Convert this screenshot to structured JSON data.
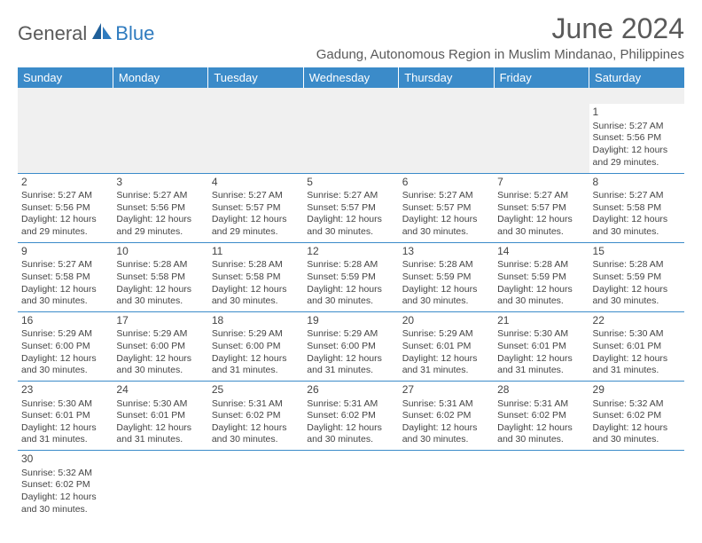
{
  "brand": {
    "part1": "General",
    "part2": "Blue"
  },
  "title": "June 2024",
  "location": "Gadung, Autonomous Region in Muslim Mindanao, Philippines",
  "header_bg": "#3b8bc9",
  "header_fg": "#ffffff",
  "border_color": "#3b8bc9",
  "dayNames": [
    "Sunday",
    "Monday",
    "Tuesday",
    "Wednesday",
    "Thursday",
    "Friday",
    "Saturday"
  ],
  "weeks": [
    [
      null,
      null,
      null,
      null,
      null,
      null,
      {
        "n": "1",
        "sr": "Sunrise: 5:27 AM",
        "ss": "Sunset: 5:56 PM",
        "d1": "Daylight: 12 hours",
        "d2": "and 29 minutes."
      }
    ],
    [
      {
        "n": "2",
        "sr": "Sunrise: 5:27 AM",
        "ss": "Sunset: 5:56 PM",
        "d1": "Daylight: 12 hours",
        "d2": "and 29 minutes."
      },
      {
        "n": "3",
        "sr": "Sunrise: 5:27 AM",
        "ss": "Sunset: 5:56 PM",
        "d1": "Daylight: 12 hours",
        "d2": "and 29 minutes."
      },
      {
        "n": "4",
        "sr": "Sunrise: 5:27 AM",
        "ss": "Sunset: 5:57 PM",
        "d1": "Daylight: 12 hours",
        "d2": "and 29 minutes."
      },
      {
        "n": "5",
        "sr": "Sunrise: 5:27 AM",
        "ss": "Sunset: 5:57 PM",
        "d1": "Daylight: 12 hours",
        "d2": "and 30 minutes."
      },
      {
        "n": "6",
        "sr": "Sunrise: 5:27 AM",
        "ss": "Sunset: 5:57 PM",
        "d1": "Daylight: 12 hours",
        "d2": "and 30 minutes."
      },
      {
        "n": "7",
        "sr": "Sunrise: 5:27 AM",
        "ss": "Sunset: 5:57 PM",
        "d1": "Daylight: 12 hours",
        "d2": "and 30 minutes."
      },
      {
        "n": "8",
        "sr": "Sunrise: 5:27 AM",
        "ss": "Sunset: 5:58 PM",
        "d1": "Daylight: 12 hours",
        "d2": "and 30 minutes."
      }
    ],
    [
      {
        "n": "9",
        "sr": "Sunrise: 5:27 AM",
        "ss": "Sunset: 5:58 PM",
        "d1": "Daylight: 12 hours",
        "d2": "and 30 minutes."
      },
      {
        "n": "10",
        "sr": "Sunrise: 5:28 AM",
        "ss": "Sunset: 5:58 PM",
        "d1": "Daylight: 12 hours",
        "d2": "and 30 minutes."
      },
      {
        "n": "11",
        "sr": "Sunrise: 5:28 AM",
        "ss": "Sunset: 5:58 PM",
        "d1": "Daylight: 12 hours",
        "d2": "and 30 minutes."
      },
      {
        "n": "12",
        "sr": "Sunrise: 5:28 AM",
        "ss": "Sunset: 5:59 PM",
        "d1": "Daylight: 12 hours",
        "d2": "and 30 minutes."
      },
      {
        "n": "13",
        "sr": "Sunrise: 5:28 AM",
        "ss": "Sunset: 5:59 PM",
        "d1": "Daylight: 12 hours",
        "d2": "and 30 minutes."
      },
      {
        "n": "14",
        "sr": "Sunrise: 5:28 AM",
        "ss": "Sunset: 5:59 PM",
        "d1": "Daylight: 12 hours",
        "d2": "and 30 minutes."
      },
      {
        "n": "15",
        "sr": "Sunrise: 5:28 AM",
        "ss": "Sunset: 5:59 PM",
        "d1": "Daylight: 12 hours",
        "d2": "and 30 minutes."
      }
    ],
    [
      {
        "n": "16",
        "sr": "Sunrise: 5:29 AM",
        "ss": "Sunset: 6:00 PM",
        "d1": "Daylight: 12 hours",
        "d2": "and 30 minutes."
      },
      {
        "n": "17",
        "sr": "Sunrise: 5:29 AM",
        "ss": "Sunset: 6:00 PM",
        "d1": "Daylight: 12 hours",
        "d2": "and 30 minutes."
      },
      {
        "n": "18",
        "sr": "Sunrise: 5:29 AM",
        "ss": "Sunset: 6:00 PM",
        "d1": "Daylight: 12 hours",
        "d2": "and 31 minutes."
      },
      {
        "n": "19",
        "sr": "Sunrise: 5:29 AM",
        "ss": "Sunset: 6:00 PM",
        "d1": "Daylight: 12 hours",
        "d2": "and 31 minutes."
      },
      {
        "n": "20",
        "sr": "Sunrise: 5:29 AM",
        "ss": "Sunset: 6:01 PM",
        "d1": "Daylight: 12 hours",
        "d2": "and 31 minutes."
      },
      {
        "n": "21",
        "sr": "Sunrise: 5:30 AM",
        "ss": "Sunset: 6:01 PM",
        "d1": "Daylight: 12 hours",
        "d2": "and 31 minutes."
      },
      {
        "n": "22",
        "sr": "Sunrise: 5:30 AM",
        "ss": "Sunset: 6:01 PM",
        "d1": "Daylight: 12 hours",
        "d2": "and 31 minutes."
      }
    ],
    [
      {
        "n": "23",
        "sr": "Sunrise: 5:30 AM",
        "ss": "Sunset: 6:01 PM",
        "d1": "Daylight: 12 hours",
        "d2": "and 31 minutes."
      },
      {
        "n": "24",
        "sr": "Sunrise: 5:30 AM",
        "ss": "Sunset: 6:01 PM",
        "d1": "Daylight: 12 hours",
        "d2": "and 31 minutes."
      },
      {
        "n": "25",
        "sr": "Sunrise: 5:31 AM",
        "ss": "Sunset: 6:02 PM",
        "d1": "Daylight: 12 hours",
        "d2": "and 30 minutes."
      },
      {
        "n": "26",
        "sr": "Sunrise: 5:31 AM",
        "ss": "Sunset: 6:02 PM",
        "d1": "Daylight: 12 hours",
        "d2": "and 30 minutes."
      },
      {
        "n": "27",
        "sr": "Sunrise: 5:31 AM",
        "ss": "Sunset: 6:02 PM",
        "d1": "Daylight: 12 hours",
        "d2": "and 30 minutes."
      },
      {
        "n": "28",
        "sr": "Sunrise: 5:31 AM",
        "ss": "Sunset: 6:02 PM",
        "d1": "Daylight: 12 hours",
        "d2": "and 30 minutes."
      },
      {
        "n": "29",
        "sr": "Sunrise: 5:32 AM",
        "ss": "Sunset: 6:02 PM",
        "d1": "Daylight: 12 hours",
        "d2": "and 30 minutes."
      }
    ],
    [
      {
        "n": "30",
        "sr": "Sunrise: 5:32 AM",
        "ss": "Sunset: 6:02 PM",
        "d1": "Daylight: 12 hours",
        "d2": "and 30 minutes."
      },
      null,
      null,
      null,
      null,
      null,
      null
    ]
  ]
}
